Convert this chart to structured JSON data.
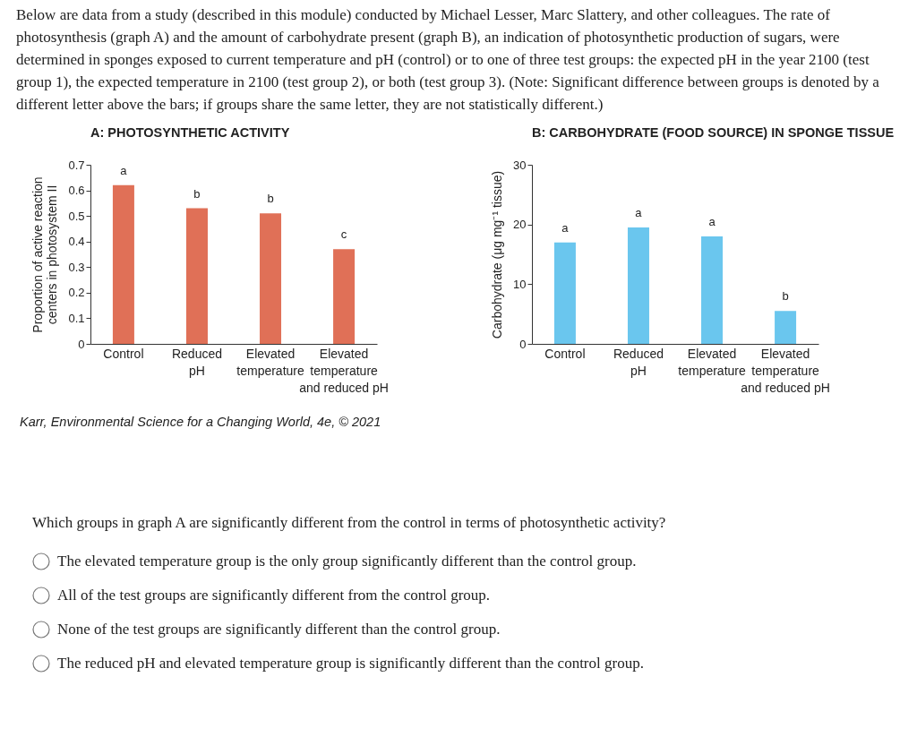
{
  "chart_data": [
    {
      "type": "bar",
      "title": "A: PHOTOSYNTHETIC ACTIVITY",
      "ylabel": "Proportion of active reaction centers in photosystem II",
      "categories": [
        "Control",
        "Reduced pH",
        "Elevated temperature",
        "Elevated temperature and reduced pH"
      ],
      "values": [
        0.62,
        0.53,
        0.51,
        0.37
      ],
      "color": "#e07057",
      "ylim": [
        0,
        0.7
      ],
      "yticks": [
        0,
        0.1,
        0.2,
        0.3,
        0.4,
        0.5,
        0.6,
        0.7
      ],
      "annotations": [
        "Below are data from a study (described in this module) conducted by Michael Lesser, Marc Slattery, and other colleagues. The rate of photosynthesis (graph A) and the amount of carbohydrate present (graph B), an indication of photosynthetic production of sugars, were determined in sponges exposed to current temperature and pH (control) or to one of three test groups: the expected pH in the year 2100 (test group 1), the expected temperature in 2100 (test group 2), or both (test group 3).  (Note: Significant difference between groups is denoted by a different letter above the bars; if groups share the same letter, they are not statistically different.)",
        {
          "text": "a",
          "x": "Control",
          "y": 0.62
        },
        {
          "text": "b",
          "x": "Reduced pH",
          "y": 0.53
        },
        {
          "text": "b",
          "x": "Elevated temperature",
          "y": 0.51
        },
        {
          "text": "c",
          "x": "Elevated temperature and reduced pH",
          "y": 0.37
        }
      ]
    },
    {
      "type": "bar",
      "title": "B: CARBOHYDRATE (FOOD SOURCE) IN SPONGE TISSUE",
      "ylabel": "Carbohydrate (μg mg⁻¹ tissue)",
      "categories": [
        "Control",
        "Reduced pH",
        "Elevated temperature",
        "Elevated temperature and reduced pH"
      ],
      "values": [
        17,
        19.5,
        18,
        5.5
      ],
      "color": "#6ac6ee",
      "ylim": [
        0,
        30
      ],
      "yticks": [
        0,
        10,
        20,
        30
      ],
      "annotations": [
        {
          "text": "a",
          "x": "Control",
          "y": 17
        },
        {
          "text": "a",
          "x": "Reduced pH",
          "y": 19.5
        },
        {
          "text": "a",
          "x": "Elevated temperature",
          "y": 18
        },
        {
          "text": "b",
          "x": "Elevated temperature and reduced pH",
          "y": 5.5
        },
        "Karr, Environmental Science for a Changing World, 4e, © 2021",
        "Which groups in graph A are significantly different from the control in terms of photosynthetic activity?",
        "The elevated temperature group is the only group significantly different than the control group.",
        "All of the test groups are significantly different from the control group.",
        "None of the test groups are significantly different than the control group.",
        "The reduced pH and elevated temperature group is significantly different than the control group."
      ]
    }
  ]
}
